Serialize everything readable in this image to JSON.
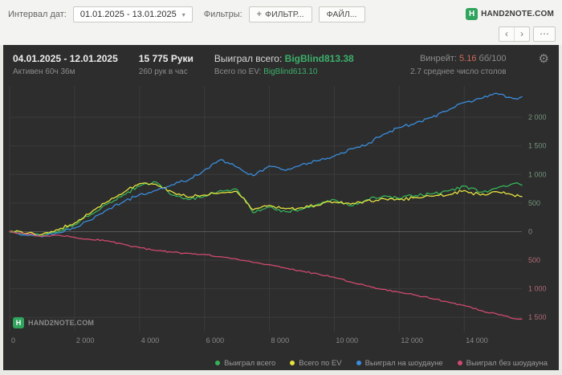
{
  "topbar": {
    "interval_label": "Интервал дат:",
    "interval_value": "01.01.2025 - 13.01.2025",
    "filters_label": "Фильтры:",
    "filter_button": "ФИЛЬТР...",
    "file_button": "ФАЙЛ...",
    "brand_letter": "H",
    "brand_text": "HAND2NOTE.COM"
  },
  "icons": {
    "caret_down": "▾",
    "plus": "+",
    "nav_prev": "‹",
    "nav_next": "›",
    "nav_more": "⋯",
    "gear": "⚙"
  },
  "header": {
    "date_range": "04.01.2025 - 12.01.2025",
    "active_time": "Активен 60ч 36м",
    "hands": "15 775 Руки",
    "hands_per_hour": "260 рук в час",
    "won_total_label": "Выиграл всего:",
    "won_total_value": "BigBlind813.38",
    "ev_label": "Всего по EV:",
    "ev_value": "BigBlind613.10",
    "winrate_label": "Винрейт:",
    "winrate_value": "5.16",
    "winrate_units": "бб/100",
    "avg_tables": "2.7 среднее число столов"
  },
  "watermark": {
    "letter": "H",
    "text": "HAND2NOTE.COM"
  },
  "colors": {
    "panel_bg": "#2d2d2d",
    "accent_green": "#3cb06b",
    "winrate_red": "#cf6a5a"
  },
  "chart_data": {
    "type": "line",
    "title": "",
    "xlabel": "",
    "ylabel": "",
    "xlim": [
      0,
      15775
    ],
    "ylim": [
      -1750,
      2550
    ],
    "x_ticks": [
      0,
      2000,
      4000,
      6000,
      8000,
      10000,
      12000,
      14000
    ],
    "y_ticks": [
      2000,
      1500,
      1000,
      500,
      0,
      -500,
      -1000,
      -1500
    ],
    "grid": true,
    "grid_color": "#3b3b3b",
    "zero_line_color": "#585858",
    "x_tick_color": "#8a8a8a",
    "y_tick_positive_color": "#74957c",
    "y_tick_negative_color": "#b06a78",
    "legend_position": "bottom-right",
    "x": [
      0,
      500,
      1000,
      1500,
      2000,
      2500,
      3000,
      3500,
      4000,
      4500,
      5000,
      5500,
      6000,
      6500,
      7000,
      7500,
      8000,
      8500,
      9000,
      9500,
      10000,
      10500,
      11000,
      11500,
      12000,
      12500,
      13000,
      13500,
      14000,
      14500,
      15000,
      15500,
      15775
    ],
    "series": [
      {
        "name": "Выиграл всего",
        "color": "#35b359",
        "noise": 34,
        "values": [
          0,
          -40,
          -70,
          0,
          120,
          300,
          480,
          640,
          800,
          870,
          640,
          560,
          620,
          720,
          740,
          330,
          430,
          350,
          390,
          480,
          560,
          450,
          560,
          620,
          580,
          630,
          660,
          710,
          800,
          690,
          760,
          840,
          813
        ]
      },
      {
        "name": "Всего по EV",
        "color": "#e6e33e",
        "noise": 34,
        "values": [
          0,
          -30,
          -50,
          30,
          150,
          330,
          520,
          680,
          840,
          830,
          700,
          600,
          640,
          680,
          700,
          380,
          460,
          400,
          420,
          460,
          520,
          480,
          540,
          580,
          560,
          600,
          620,
          640,
          720,
          640,
          700,
          640,
          613
        ]
      },
      {
        "name": "Выиграл на шоудауне",
        "color": "#3a8ddc",
        "noise": 30,
        "values": [
          0,
          -60,
          -90,
          -20,
          60,
          200,
          380,
          520,
          650,
          720,
          820,
          900,
          1080,
          1260,
          1130,
          980,
          1150,
          1070,
          1180,
          1240,
          1320,
          1450,
          1520,
          1700,
          1820,
          1900,
          2000,
          2120,
          2260,
          2330,
          2420,
          2330,
          2360
        ]
      },
      {
        "name": "Выиграл без шоудауна",
        "color": "#cf4a6e",
        "noise": 16,
        "values": [
          0,
          -40,
          -80,
          -60,
          -100,
          -140,
          -160,
          -220,
          -280,
          -330,
          -360,
          -380,
          -400,
          -440,
          -480,
          -540,
          -580,
          -640,
          -690,
          -740,
          -800,
          -880,
          -950,
          -1010,
          -1060,
          -1110,
          -1170,
          -1230,
          -1290,
          -1380,
          -1440,
          -1520,
          -1530
        ]
      }
    ]
  }
}
